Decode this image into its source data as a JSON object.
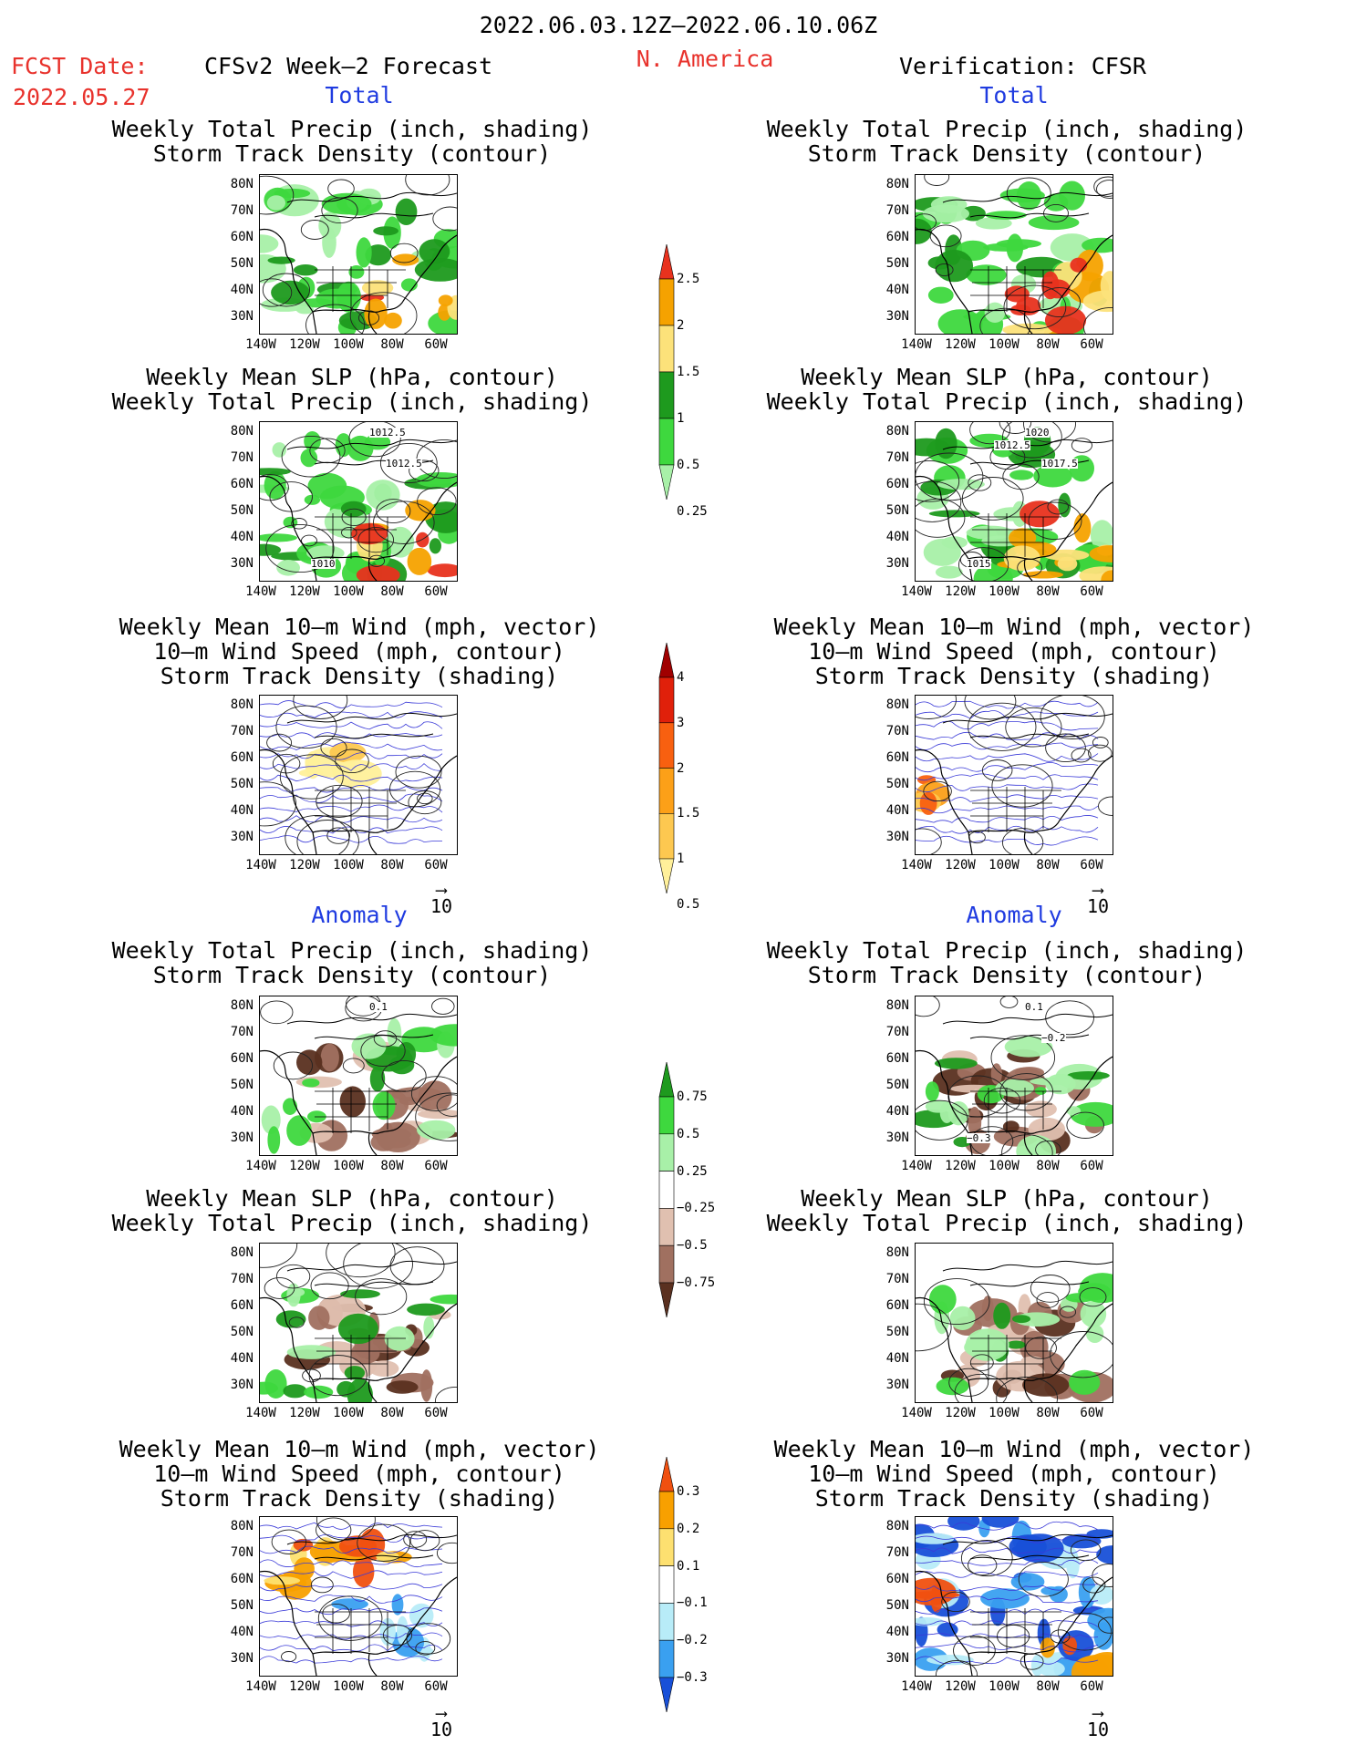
{
  "header": {
    "period": "2022.06.03.12Z—2022.06.10.06Z",
    "region": "N. America",
    "fcst_label": "FCST Date:",
    "fcst_date": "2022.05.27",
    "model": "CFSv2 Week—2 Forecast",
    "verification": "Verification: CFSR"
  },
  "sections": {
    "total": "Total",
    "anomaly": "Anomaly"
  },
  "titles": {
    "precip_storm": [
      "Weekly Total Precip (inch, shading)",
      "Storm Track Density (contour)"
    ],
    "slp_precip": [
      "Weekly Mean SLP (hPa, contour)",
      "Weekly Total Precip (inch, shading)"
    ],
    "wind_storm": [
      "Weekly Mean 10—m Wind (mph, vector)",
      "10—m Wind Speed (mph, contour)",
      "Storm Track Density (shading)"
    ]
  },
  "axes": {
    "lat_ticks": [
      "80N",
      "70N",
      "60N",
      "50N",
      "40N",
      "30N"
    ],
    "lon_ticks": [
      "140W",
      "120W",
      "100W",
      "80W",
      "60W"
    ]
  },
  "vector_reference": "10",
  "colorbars": {
    "precip_total": {
      "labels": [
        "2.5",
        "2",
        "1.5",
        "1",
        "0.5",
        "0.25"
      ],
      "colors": [
        "#e8321e",
        "#f5a200",
        "#fce27a",
        "#1e9a1e",
        "#3ed83e",
        "#a8f0a8"
      ]
    },
    "storm_total": {
      "labels": [
        "4",
        "3",
        "2",
        "1.5",
        "1",
        "0.5"
      ],
      "colors": [
        "#a00000",
        "#e0200a",
        "#f86010",
        "#fca018",
        "#fdc850",
        "#fff09a"
      ]
    },
    "precip_anom": {
      "labels": [
        "0.75",
        "0.5",
        "0.25",
        "−0.25",
        "−0.5",
        "−0.75"
      ],
      "colors": [
        "#1e9a1e",
        "#3ed83e",
        "#a8f0a8",
        "#ffffff",
        "#e0c0b0",
        "#a07060",
        "#5a3020"
      ]
    },
    "storm_anom": {
      "labels": [
        "0.3",
        "0.2",
        "0.1",
        "−0.1",
        "−0.2",
        "−0.3"
      ],
      "colors": [
        "#f05010",
        "#f8a000",
        "#fde070",
        "#ffffff",
        "#b8ecf8",
        "#3aa0f0",
        "#1850d8"
      ]
    }
  },
  "panel_labels": {
    "fc_slp": [
      "1012.5",
      "1012.5",
      "1010"
    ],
    "obs_slp": [
      "1020",
      "1017.5",
      "1015",
      "1012.5"
    ],
    "obs_precip_anom": [
      "0.1",
      "−0.2",
      "−0.3"
    ],
    "fc_precip_anom": [
      "0.1"
    ]
  },
  "colors": {
    "red_text": "#e8322c",
    "blue_text": "#1f3be0"
  }
}
